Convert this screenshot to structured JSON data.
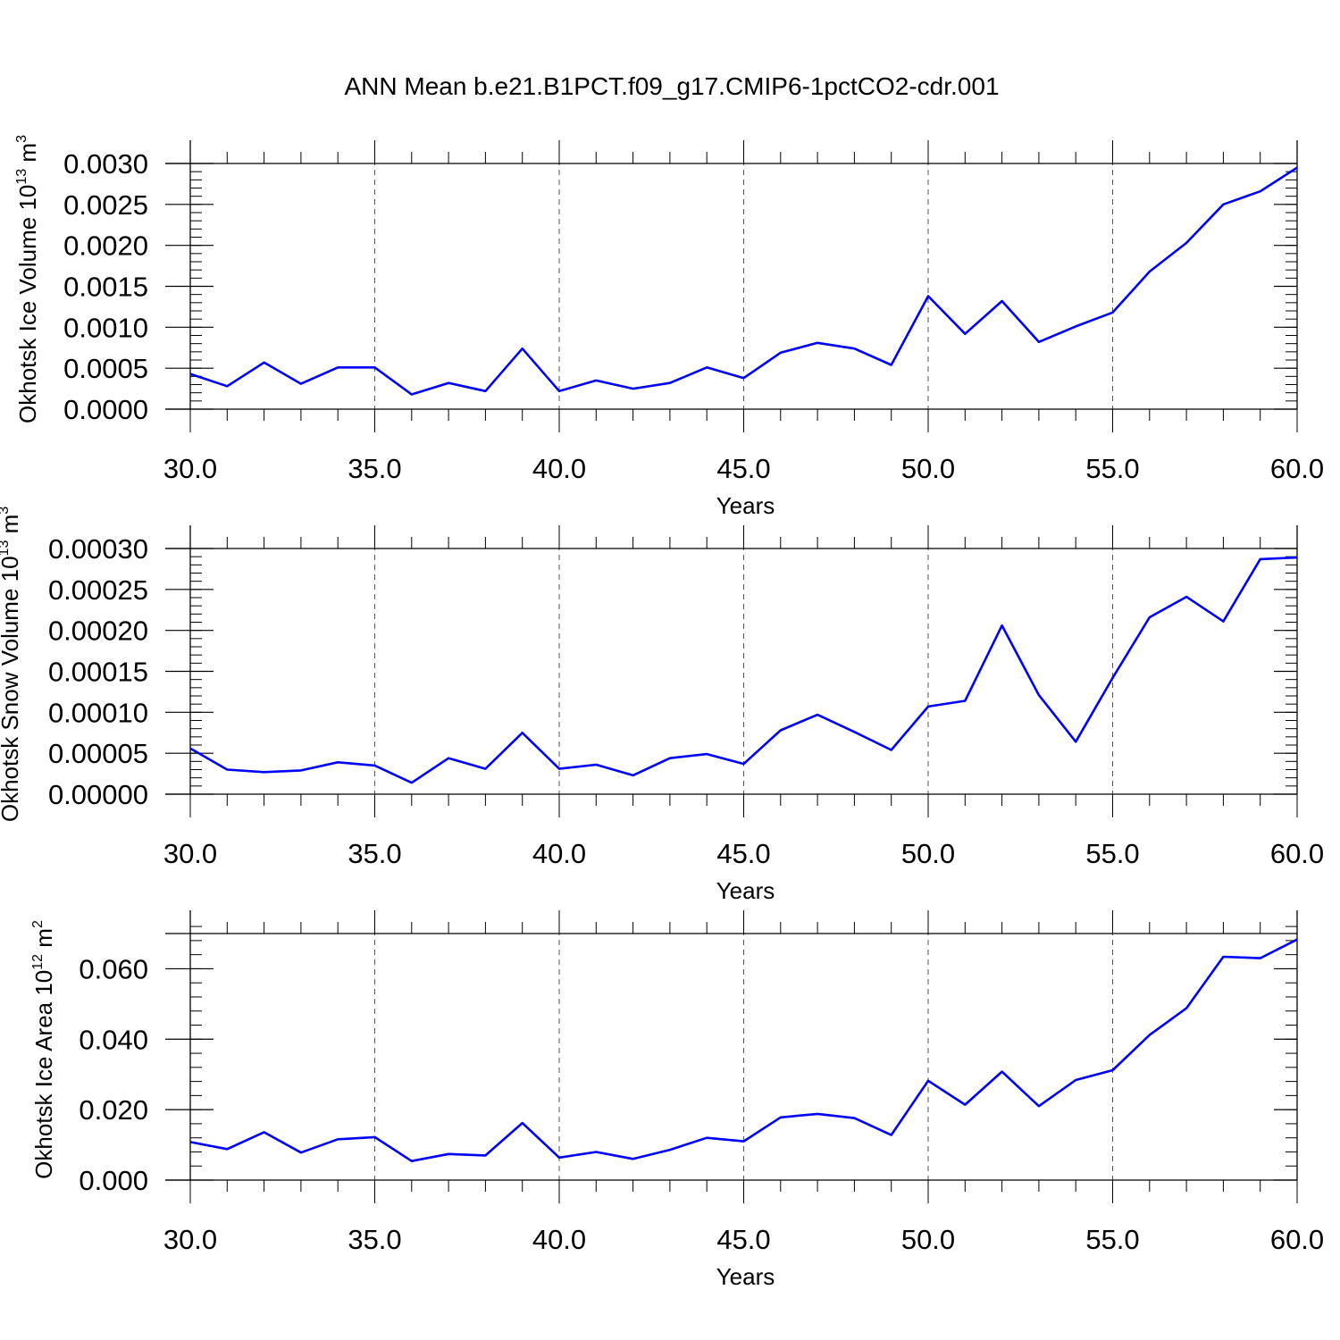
{
  "title": "ANN Mean b.e21.B1PCT.f09_g17.CMIP6-1pctCO2-cdr.001",
  "line_color": "#0000ff",
  "chart_data": [
    {
      "type": "line",
      "xlabel": "Years",
      "ylabel": "Okhotsk Ice Volume 10",
      "ylabel_exp": "13",
      "ylabel_unit": " m",
      "ylabel_unit_exp": "3",
      "xlim": [
        30,
        60
      ],
      "ylim": [
        0,
        0.003
      ],
      "x_ticks": [
        30,
        35,
        40,
        45,
        50,
        55,
        60
      ],
      "x_tick_labels": [
        "30.0",
        "35.0",
        "40.0",
        "45.0",
        "50.0",
        "55.0",
        "60.0"
      ],
      "y_ticks": [
        0,
        0.0005,
        0.001,
        0.0015,
        0.002,
        0.0025,
        0.003
      ],
      "y_tick_labels": [
        "0.0000",
        "0.0005",
        "0.0010",
        "0.0015",
        "0.0020",
        "0.0025",
        "0.0030"
      ],
      "y_minor_step": 0.0001,
      "grid_x": "dashed vertical at major x ticks",
      "x": [
        30,
        31,
        32,
        33,
        34,
        35,
        36,
        37,
        38,
        39,
        40,
        41,
        42,
        43,
        44,
        45,
        46,
        47,
        48,
        49,
        50,
        51,
        52,
        53,
        54,
        55,
        56,
        57,
        58,
        59,
        60
      ],
      "values": [
        0.00043,
        0.00028,
        0.00057,
        0.00031,
        0.00051,
        0.00051,
        0.00018,
        0.00032,
        0.00022,
        0.00074,
        0.00022,
        0.00035,
        0.00025,
        0.00032,
        0.00051,
        0.00038,
        0.00069,
        0.00081,
        0.00074,
        0.00054,
        0.00138,
        0.00092,
        0.00132,
        0.00082,
        0.00101,
        0.00118,
        0.00168,
        0.00203,
        0.0025,
        0.00266,
        0.00295
      ]
    },
    {
      "type": "line",
      "xlabel": "Years",
      "ylabel": "Okhotsk Snow Volume 10",
      "ylabel_exp": "13",
      "ylabel_unit": " m",
      "ylabel_unit_exp": "3",
      "xlim": [
        30,
        60
      ],
      "ylim": [
        0,
        0.0003
      ],
      "x_ticks": [
        30,
        35,
        40,
        45,
        50,
        55,
        60
      ],
      "x_tick_labels": [
        "30.0",
        "35.0",
        "40.0",
        "45.0",
        "50.0",
        "55.0",
        "60.0"
      ],
      "y_ticks": [
        0,
        5e-05,
        0.0001,
        0.00015,
        0.0002,
        0.00025,
        0.0003
      ],
      "y_tick_labels": [
        "0.00000",
        "0.00005",
        "0.00010",
        "0.00015",
        "0.00020",
        "0.00025",
        "0.00030"
      ],
      "y_minor_step": 1e-05,
      "grid_x": "dashed vertical at major x ticks",
      "x": [
        30,
        31,
        32,
        33,
        34,
        35,
        36,
        37,
        38,
        39,
        40,
        41,
        42,
        43,
        44,
        45,
        46,
        47,
        48,
        49,
        50,
        51,
        52,
        53,
        54,
        55,
        56,
        57,
        58,
        59,
        60
      ],
      "values": [
        5.6e-05,
        3e-05,
        2.7e-05,
        2.9e-05,
        3.9e-05,
        3.5e-05,
        1.4e-05,
        4.4e-05,
        3.1e-05,
        7.5e-05,
        3.1e-05,
        3.6e-05,
        2.3e-05,
        4.4e-05,
        4.9e-05,
        3.7e-05,
        7.8e-05,
        9.7e-05,
        7.6e-05,
        5.4e-05,
        0.000107,
        0.000114,
        0.000206,
        0.000121,
        6.4e-05,
        0.000142,
        0.000216,
        0.000241,
        0.000211,
        0.000287,
        0.000289
      ]
    },
    {
      "type": "line",
      "xlabel": "Years",
      "ylabel": "Okhotsk Ice Area 10",
      "ylabel_exp": "12",
      "ylabel_unit": " m",
      "ylabel_unit_exp": "2",
      "xlim": [
        30,
        60
      ],
      "ylim": [
        0,
        0.07
      ],
      "x_ticks": [
        30,
        35,
        40,
        45,
        50,
        55,
        60
      ],
      "x_tick_labels": [
        "30.0",
        "35.0",
        "40.0",
        "45.0",
        "50.0",
        "55.0",
        "60.0"
      ],
      "y_ticks": [
        0,
        0.02,
        0.04,
        0.06
      ],
      "y_tick_labels": [
        "0.000",
        "0.020",
        "0.040",
        "0.060"
      ],
      "y_minor_step": 0.004,
      "grid_x": "dashed vertical at major x ticks",
      "x": [
        30,
        31,
        32,
        33,
        34,
        35,
        36,
        37,
        38,
        39,
        40,
        41,
        42,
        43,
        44,
        45,
        46,
        47,
        48,
        49,
        50,
        51,
        52,
        53,
        54,
        55,
        56,
        57,
        58,
        59,
        60
      ],
      "values": [
        0.0108,
        0.0088,
        0.0136,
        0.0078,
        0.0116,
        0.0122,
        0.0054,
        0.0074,
        0.007,
        0.0162,
        0.0064,
        0.008,
        0.006,
        0.0086,
        0.012,
        0.011,
        0.0178,
        0.0188,
        0.0176,
        0.0128,
        0.0282,
        0.0214,
        0.0308,
        0.021,
        0.0284,
        0.0312,
        0.0412,
        0.0488,
        0.0634,
        0.063,
        0.0683
      ]
    }
  ]
}
